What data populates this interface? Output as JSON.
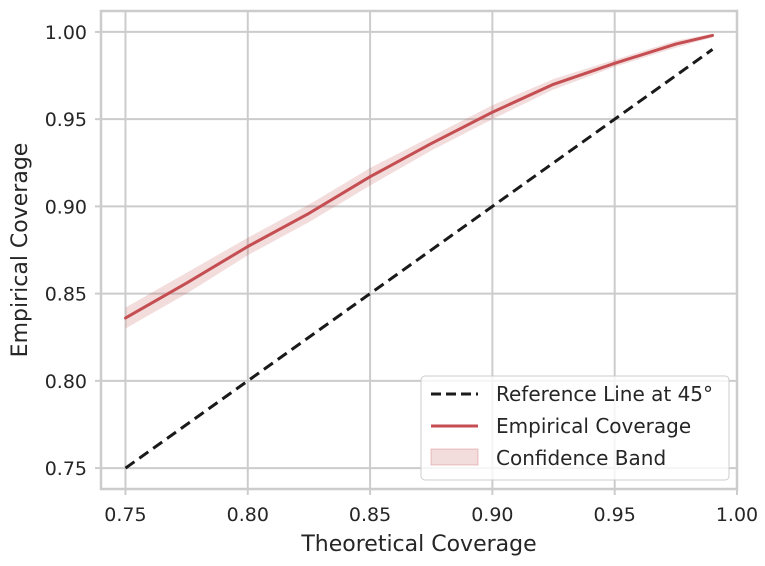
{
  "chart_data": {
    "type": "line",
    "title": "",
    "xlabel": "Theoretical Coverage",
    "ylabel": "Empirical Coverage",
    "xlim": [
      0.74,
      1.0
    ],
    "ylim": [
      0.738,
      1.012
    ],
    "xticks": [
      0.75,
      0.8,
      0.85,
      0.9,
      0.95,
      1.0
    ],
    "xtick_labels": [
      "0.75",
      "0.80",
      "0.85",
      "0.90",
      "0.95",
      "1.00"
    ],
    "yticks": [
      0.75,
      0.8,
      0.85,
      0.9,
      0.95,
      1.0
    ],
    "ytick_labels": [
      "0.75",
      "0.80",
      "0.85",
      "0.90",
      "0.95",
      "1.00"
    ],
    "grid": true,
    "legend_position": "bottom-right",
    "reference_line": {
      "name": "Reference Line at 45°",
      "color": "#1a1a1a",
      "style": "dashed",
      "x": [
        0.75,
        0.99
      ],
      "y": [
        0.75,
        0.99
      ]
    },
    "series": [
      {
        "name": "Empirical Coverage",
        "color": "#c44e52",
        "x": [
          0.75,
          0.775,
          0.8,
          0.825,
          0.85,
          0.875,
          0.9,
          0.925,
          0.95,
          0.975,
          0.99
        ],
        "y": [
          0.836,
          0.856,
          0.877,
          0.896,
          0.917,
          0.936,
          0.954,
          0.97,
          0.982,
          0.993,
          0.998
        ]
      }
    ],
    "confidence_band": {
      "name": "Confidence Band",
      "color": "#c44e52",
      "opacity": 0.2,
      "x": [
        0.75,
        0.775,
        0.8,
        0.825,
        0.85,
        0.875,
        0.9,
        0.925,
        0.95,
        0.975,
        0.99
      ],
      "lower": [
        0.83,
        0.85,
        0.872,
        0.891,
        0.912,
        0.932,
        0.95,
        0.967,
        0.98,
        0.991,
        0.997
      ],
      "upper": [
        0.842,
        0.862,
        0.882,
        0.901,
        0.922,
        0.94,
        0.958,
        0.973,
        0.984,
        0.995,
        0.999
      ]
    }
  }
}
